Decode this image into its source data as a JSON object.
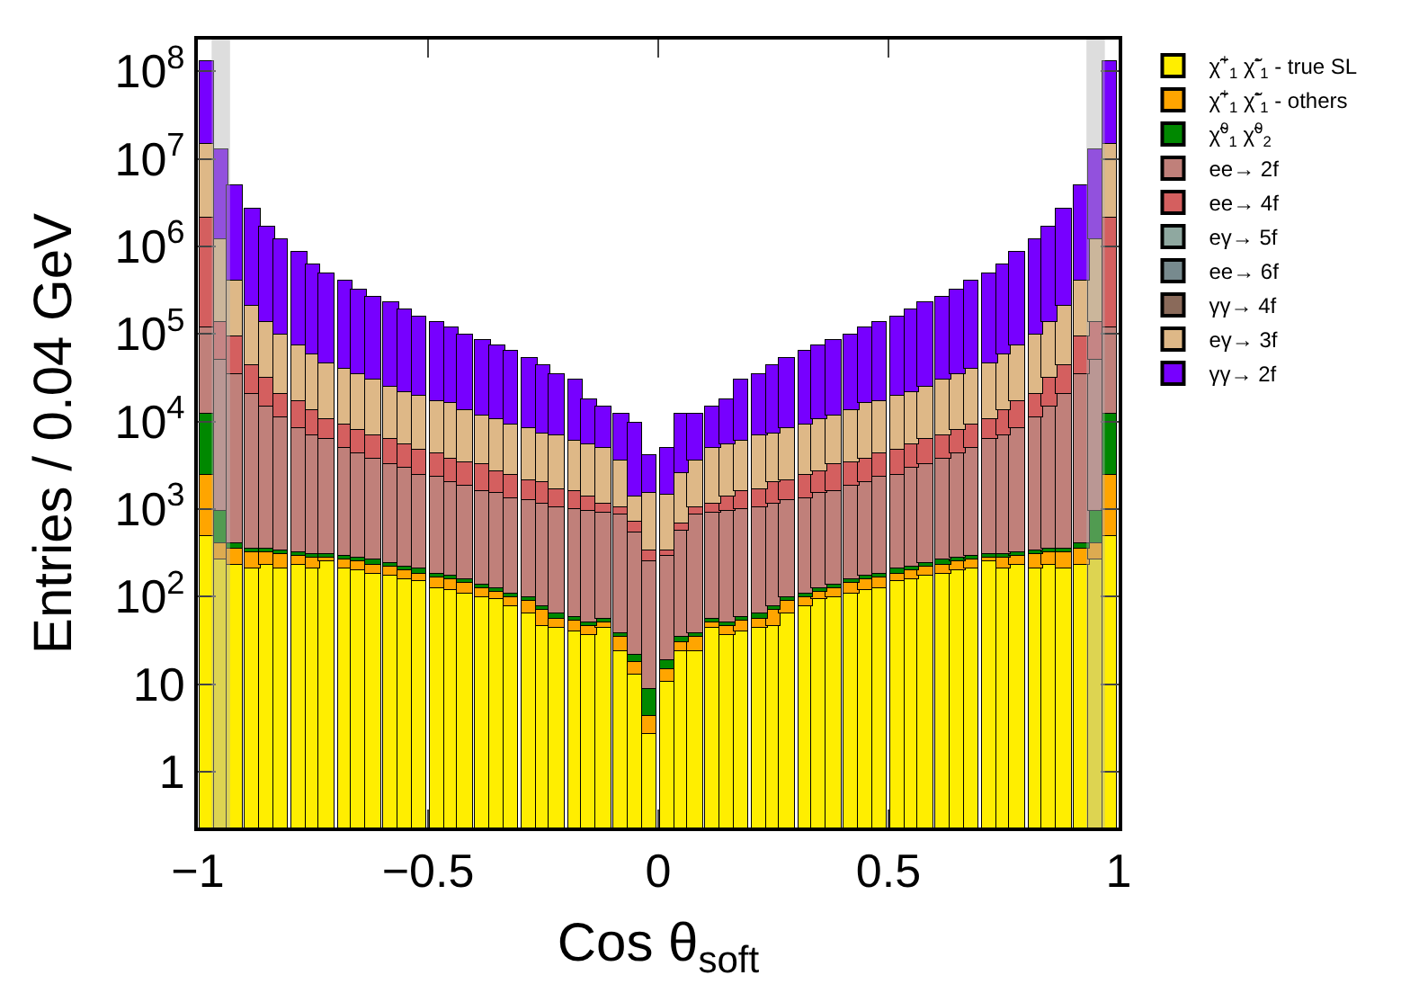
{
  "chart_data": {
    "type": "bar",
    "xlabel": "Cos θ$_{soft}$",
    "ylabel": "Entries / 0.04 GeV",
    "stacked": true,
    "log": true,
    "legend": "right",
    "x": [
      -0.98,
      -0.95,
      -0.92,
      -0.88,
      -0.85,
      -0.82,
      -0.78,
      -0.75,
      -0.72,
      -0.68,
      -0.65,
      -0.62,
      -0.58,
      -0.55,
      -0.52,
      -0.48,
      -0.45,
      -0.42,
      -0.38,
      -0.35,
      -0.32,
      -0.28,
      -0.25,
      -0.22,
      -0.18,
      -0.15,
      -0.12,
      -0.08,
      -0.05,
      -0.02,
      0.02,
      0.05,
      0.08,
      0.12,
      0.15,
      0.18,
      0.22,
      0.25,
      0.28,
      0.32,
      0.35,
      0.38,
      0.42,
      0.45,
      0.48,
      0.52,
      0.55,
      0.58,
      0.62,
      0.65,
      0.68,
      0.72,
      0.75,
      0.78,
      0.82,
      0.85,
      0.88,
      0.92,
      0.95,
      0.98
    ],
    "xlim": [
      -1,
      1
    ],
    "xticks": [
      {
        "value": -1,
        "label": "−1"
      },
      {
        "value": -0.5,
        "label": "−0.5"
      },
      0,
      0.5,
      1
    ],
    "ylim": [
      0.23,
      230000000
    ],
    "yticks": [
      1,
      10,
      {
        "value": 100,
        "label": "10$^{2}$"
      },
      {
        "value": 1000,
        "label": "10$^{3}$"
      },
      {
        "value": 10000,
        "label": "10$^{4}$"
      },
      {
        "value": 100000,
        "label": "10$^{5}$"
      },
      {
        "value": 1000000,
        "label": "10$^{6}$"
      },
      {
        "value": 10000000,
        "label": "10$^{7}$"
      },
      {
        "value": 100000000,
        "label": "10$^{8}$"
      }
    ],
    "bands": [
      {
        "axis": "x",
        "from": -0.97,
        "to": -0.93,
        "color": "#b4b4b4"
      },
      {
        "axis": "x",
        "from": 0.93,
        "to": 0.97,
        "color": "#b4b4b4"
      }
    ],
    "series": [
      {
        "name": "χ̃$^{+}$$_{1}$ χ̃$^{-}$$_{1}$ - true SL",
        "color": "#ffee00",
        "values": [
          500,
          270,
          230,
          210,
          230,
          210,
          230,
          210,
          250,
          210,
          200,
          185,
          170,
          160,
          150,
          125,
          118,
          107,
          100,
          93,
          79,
          63,
          47,
          43,
          40,
          36,
          44,
          24,
          13,
          2.7,
          10.5,
          24,
          24,
          44,
          36,
          40,
          43,
          47,
          63,
          79,
          93,
          100,
          107,
          118,
          125,
          150,
          160,
          170,
          185,
          200,
          210,
          250,
          210,
          230,
          210,
          230,
          210,
          230,
          270,
          500
        ]
      },
      {
        "name": "χ̃$^{+}$$_{1}$ χ̃$^{-}$$_{1}$ - others",
        "color": "#ffa500",
        "values": [
          2000,
          130,
          120,
          110,
          90,
          90,
          65,
          70,
          30,
          60,
          50,
          50,
          45,
          40,
          35,
          40,
          40,
          34,
          26,
          19,
          21,
          26,
          24,
          13,
          12,
          9,
          7,
          11,
          5,
          1.6,
          4.5,
          6,
          11,
          7,
          9,
          12,
          13,
          24,
          26,
          21,
          19,
          26,
          34,
          40,
          40,
          35,
          40,
          45,
          50,
          50,
          60,
          30,
          70,
          65,
          90,
          90,
          110,
          120,
          130,
          2000
        ]
      },
      {
        "name": "χ̃$^{0}$$_{1}$ χ̃$^{0}$$_{2}$",
        "color": "#008800",
        "values": [
          9500,
          530,
          50,
          40,
          35,
          35,
          30,
          30,
          25,
          25,
          25,
          25,
          25,
          22,
          20,
          20,
          18,
          15,
          12,
          10,
          9,
          8,
          7,
          7,
          7,
          5,
          4,
          3,
          4,
          4.7,
          4,
          5,
          3,
          4,
          5,
          7,
          7,
          7,
          8,
          9,
          10,
          12,
          15,
          18,
          20,
          20,
          22,
          25,
          25,
          25,
          25,
          25,
          30,
          30,
          35,
          35,
          40,
          50,
          530,
          9500
        ]
      },
      {
        "name": "ee→ 2f",
        "color": "#c0807a",
        "values": [
          108000,
          49000,
          33600,
          20600,
          14700,
          10700,
          8200,
          6500,
          6000,
          4700,
          4000,
          3450,
          2970,
          2735,
          2300,
          2170,
          1830,
          1700,
          1465,
          1380,
          1243,
          1165,
          1094,
          1007,
          941,
          900,
          855,
          812,
          508,
          241,
          276,
          540,
          812,
          855,
          900,
          941,
          1007,
          1094,
          1165,
          1243,
          1380,
          1465,
          1700,
          1830,
          2170,
          2300,
          2735,
          2970,
          3450,
          4000,
          4700,
          6000,
          6500,
          8200,
          10700,
          14700,
          20600,
          33600,
          49000,
          108000
        ]
      },
      {
        "name": "ee→ 4f",
        "color": "#d45f5f",
        "values": [
          1980000,
          85000,
          59000,
          22000,
          17000,
          10000,
          8500,
          6700,
          4400,
          4300,
          3600,
          3100,
          3100,
          2450,
          2200,
          1950,
          1700,
          1550,
          1600,
          1200,
          1150,
          890,
          830,
          630,
          600,
          450,
          240,
          200,
          190,
          90,
          45,
          95,
          200,
          240,
          450,
          600,
          630,
          830,
          890,
          1150,
          1200,
          1600,
          1550,
          1700,
          1950,
          2200,
          2450,
          3100,
          3100,
          3600,
          4300,
          4400,
          6700,
          8500,
          10000,
          17000,
          22000,
          59000,
          85000,
          1980000
        ]
      },
      {
        "name": "eγ→ 5f",
        "color": "#8fa8a0",
        "values": [
          null,
          null,
          null,
          null,
          null,
          null,
          null,
          null,
          null,
          null,
          null,
          null,
          null,
          null,
          null,
          null,
          null,
          null,
          null,
          null,
          null,
          null,
          null,
          null,
          null,
          null,
          null,
          null,
          null,
          null,
          null,
          null,
          null,
          null,
          null,
          null,
          null,
          null,
          null,
          null,
          null,
          null,
          null,
          null,
          null,
          null,
          null,
          null,
          null,
          null,
          null,
          null,
          null,
          null,
          null,
          null,
          null,
          null,
          null,
          null
        ]
      },
      {
        "name": "ee→ 6f",
        "color": "#778a8e",
        "values": [
          null,
          null,
          null,
          null,
          null,
          null,
          null,
          null,
          null,
          null,
          null,
          null,
          null,
          null,
          null,
          null,
          null,
          null,
          null,
          null,
          null,
          null,
          null,
          null,
          null,
          null,
          null,
          null,
          null,
          null,
          null,
          null,
          null,
          null,
          null,
          null,
          null,
          null,
          null,
          null,
          null,
          null,
          null,
          null,
          null,
          null,
          null,
          null,
          null,
          null,
          null,
          null,
          null,
          null,
          null,
          null,
          null,
          null,
          null,
          null
        ]
      },
      {
        "name": "γγ→ 4f",
        "color": "#8a6a5a",
        "values": [
          null,
          null,
          null,
          null,
          null,
          null,
          null,
          null,
          null,
          null,
          null,
          null,
          null,
          null,
          null,
          null,
          null,
          null,
          null,
          null,
          null,
          null,
          null,
          null,
          null,
          null,
          null,
          null,
          null,
          null,
          null,
          null,
          null,
          null,
          null,
          null,
          null,
          null,
          null,
          null,
          null,
          null,
          null,
          null,
          null,
          null,
          null,
          null,
          null,
          null,
          null,
          null,
          null,
          null,
          null,
          null,
          null,
          null,
          null,
          null
        ]
      },
      {
        "name": "eγ→ 3f",
        "color": "#deb887",
        "values": [
          12900000,
          1060000,
          307000,
          167000,
          103000,
          79000,
          57000,
          45500,
          36300,
          30700,
          26100,
          22700,
          18700,
          16100,
          15300,
          12700,
          12300,
          10100,
          8500,
          8000,
          6800,
          6350,
          5400,
          5100,
          4300,
          4200,
          3950,
          2450,
          680,
          1210,
          1100,
          1930,
          2450,
          3950,
          4200,
          4300,
          5100,
          5400,
          6350,
          6800,
          8000,
          8500,
          10100,
          12300,
          12700,
          15300,
          16100,
          18700,
          22700,
          26100,
          30700,
          36300,
          45500,
          57000,
          79000,
          103000,
          167000,
          307000,
          1060000,
          12900000
        ]
      },
      {
        "name": "γγ→ 2f",
        "color": "#7700ff",
        "values": [
          115000000,
          11800000,
          4600000,
          2490000,
          1570000,
          1100000,
          780000,
          570000,
          450000,
          360000,
          290000,
          240000,
          205000,
          169000,
          140000,
          118000,
          104000,
          86500,
          73300,
          63300,
          53700,
          45500,
          35600,
          27200,
          23600,
          12400,
          9900,
          8500,
          8200,
          2650,
          3660,
          9400,
          8500,
          9900,
          12400,
          23600,
          27200,
          35600,
          45500,
          53700,
          63300,
          73300,
          86500,
          104000,
          118000,
          140000,
          169000,
          205000,
          240000,
          290000,
          360000,
          450000,
          570000,
          780000,
          1100000,
          1570000,
          2490000,
          4600000,
          11800000,
          115000000
        ]
      }
    ]
  }
}
